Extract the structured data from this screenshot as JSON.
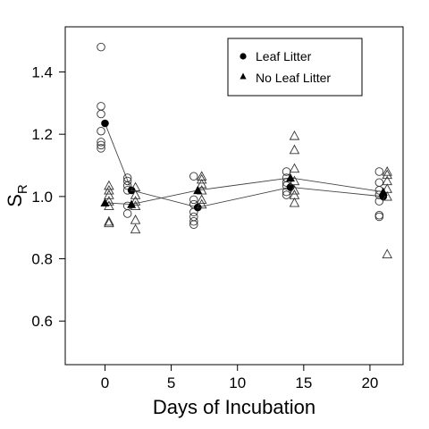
{
  "chart_data": {
    "type": "scatter",
    "title": "",
    "xlabel": "Days of Incubation",
    "ylabel": {
      "main": "S",
      "sub": "R"
    },
    "xlim": [
      -3,
      22.5
    ],
    "ylim": [
      0.46,
      1.545
    ],
    "xticks": [
      0,
      5,
      10,
      15,
      20
    ],
    "yticks": [
      0.6,
      0.8,
      1.0,
      1.2,
      1.4
    ],
    "ytick_labels": [
      "0.6",
      "0.8",
      "1.0",
      "1.2",
      "1.4"
    ],
    "grid": false,
    "legend_position": "top-right",
    "series": [
      {
        "name": "Leaf Litter",
        "marker": "circle",
        "color": "#000000",
        "mean": {
          "x": [
            0,
            2,
            7,
            14,
            21
          ],
          "y": [
            1.235,
            1.02,
            0.965,
            1.03,
            1.0
          ]
        },
        "points": [
          {
            "x": -0.3,
            "y": 1.48
          },
          {
            "x": -0.3,
            "y": 1.29
          },
          {
            "x": -0.3,
            "y": 1.265
          },
          {
            "x": -0.3,
            "y": 1.21
          },
          {
            "x": -0.3,
            "y": 1.175
          },
          {
            "x": -0.3,
            "y": 1.165
          },
          {
            "x": -0.3,
            "y": 1.155
          },
          {
            "x": 1.7,
            "y": 1.06
          },
          {
            "x": 1.7,
            "y": 1.05
          },
          {
            "x": 1.7,
            "y": 1.035
          },
          {
            "x": 1.7,
            "y": 1.02
          },
          {
            "x": 1.7,
            "y": 0.97
          },
          {
            "x": 1.7,
            "y": 0.945
          },
          {
            "x": 6.7,
            "y": 1.065
          },
          {
            "x": 6.7,
            "y": 0.99
          },
          {
            "x": 6.7,
            "y": 0.975
          },
          {
            "x": 6.7,
            "y": 0.95
          },
          {
            "x": 6.7,
            "y": 0.935
          },
          {
            "x": 6.7,
            "y": 0.92
          },
          {
            "x": 6.7,
            "y": 0.91
          },
          {
            "x": 13.7,
            "y": 1.08
          },
          {
            "x": 13.7,
            "y": 1.06
          },
          {
            "x": 13.7,
            "y": 1.045
          },
          {
            "x": 13.7,
            "y": 1.035
          },
          {
            "x": 13.7,
            "y": 1.015
          },
          {
            "x": 13.7,
            "y": 1.005
          },
          {
            "x": 20.7,
            "y": 1.08
          },
          {
            "x": 20.7,
            "y": 1.045
          },
          {
            "x": 20.7,
            "y": 1.02
          },
          {
            "x": 20.7,
            "y": 1.005
          },
          {
            "x": 20.7,
            "y": 0.985
          },
          {
            "x": 20.7,
            "y": 0.94
          },
          {
            "x": 20.7,
            "y": 0.935
          }
        ]
      },
      {
        "name": "No Leaf Litter",
        "marker": "triangle",
        "color": "#000000",
        "mean": {
          "x": [
            0,
            2,
            7,
            14,
            21
          ],
          "y": [
            0.98,
            0.975,
            1.02,
            1.06,
            1.015
          ]
        },
        "points": [
          {
            "x": 0.3,
            "y": 1.035
          },
          {
            "x": 0.3,
            "y": 1.02
          },
          {
            "x": 0.3,
            "y": 1.005
          },
          {
            "x": 0.3,
            "y": 0.985
          },
          {
            "x": 0.3,
            "y": 0.97
          },
          {
            "x": 0.3,
            "y": 0.92
          },
          {
            "x": 0.3,
            "y": 0.915
          },
          {
            "x": 2.3,
            "y": 1.03
          },
          {
            "x": 2.3,
            "y": 1.005
          },
          {
            "x": 2.3,
            "y": 0.985
          },
          {
            "x": 2.3,
            "y": 0.97
          },
          {
            "x": 2.3,
            "y": 0.925
          },
          {
            "x": 2.3,
            "y": 0.895
          },
          {
            "x": 7.3,
            "y": 1.065
          },
          {
            "x": 7.3,
            "y": 1.055
          },
          {
            "x": 7.3,
            "y": 1.04
          },
          {
            "x": 7.3,
            "y": 1.02
          },
          {
            "x": 7.3,
            "y": 0.99
          },
          {
            "x": 7.3,
            "y": 0.975
          },
          {
            "x": 14.3,
            "y": 1.195
          },
          {
            "x": 14.3,
            "y": 1.15
          },
          {
            "x": 14.3,
            "y": 1.09
          },
          {
            "x": 14.3,
            "y": 1.05
          },
          {
            "x": 14.3,
            "y": 1.02
          },
          {
            "x": 14.3,
            "y": 1.005
          },
          {
            "x": 14.3,
            "y": 0.98
          },
          {
            "x": 21.3,
            "y": 1.08
          },
          {
            "x": 21.3,
            "y": 1.07
          },
          {
            "x": 21.3,
            "y": 1.05
          },
          {
            "x": 21.3,
            "y": 1.025
          },
          {
            "x": 21.3,
            "y": 1.0
          },
          {
            "x": 21.3,
            "y": 0.815
          }
        ]
      }
    ]
  }
}
